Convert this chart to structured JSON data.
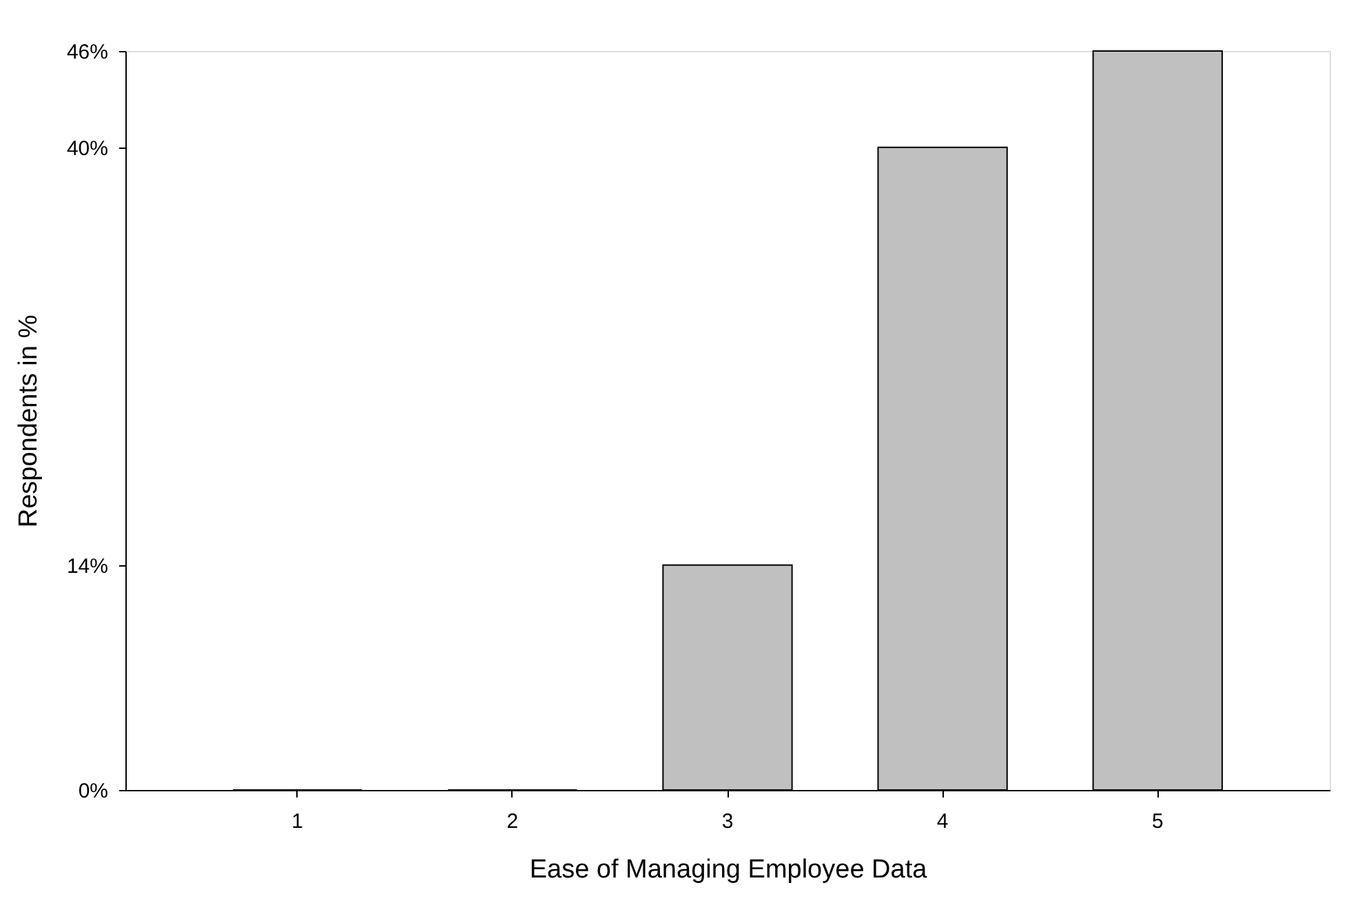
{
  "chart_data": {
    "type": "bar",
    "xlabel": "Ease of Managing Employee Data",
    "ylabel": "Respondents in %",
    "categories": [
      "1",
      "2",
      "3",
      "4",
      "5"
    ],
    "values": [
      0,
      0,
      14,
      40,
      46
    ],
    "color": "#c0c0c0",
    "ylim": [
      0,
      46
    ],
    "yticks": [
      {
        "value": 0,
        "label": "0%"
      },
      {
        "value": 14,
        "label": "14%"
      },
      {
        "value": 40,
        "label": "40%"
      },
      {
        "value": 46,
        "label": "46%"
      }
    ],
    "grid": false
  }
}
